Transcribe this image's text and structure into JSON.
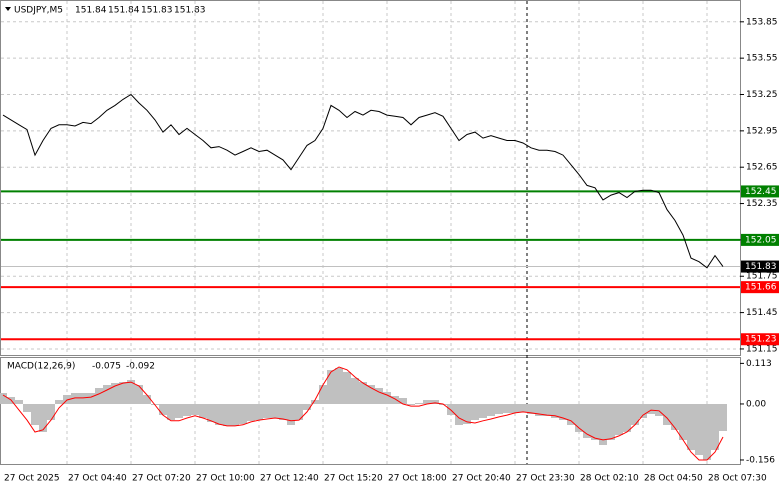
{
  "chart_data": [
    {
      "type": "line",
      "title": "USDJPY,M5",
      "ohlc": [
        151.84,
        151.84,
        151.83,
        151.83
      ],
      "color": "#000000",
      "categories": [
        "27 Oct 2025",
        null,
        null,
        null,
        null,
        null,
        null,
        null,
        "27 Oct 04:40",
        null,
        null,
        null,
        null,
        null,
        null,
        null,
        "27 Oct 07:20",
        null,
        null,
        null,
        null,
        null,
        null,
        null,
        "27 Oct 10:00",
        null,
        null,
        null,
        null,
        null,
        null,
        null,
        "27 Oct 12:40",
        null,
        null,
        null,
        null,
        null,
        null,
        null,
        "27 Oct 15:20",
        null,
        null,
        null,
        null,
        null,
        null,
        null,
        "27 Oct 18:00",
        null,
        null,
        null,
        null,
        null,
        null,
        null,
        "27 Oct 20:40",
        null,
        null,
        null,
        null,
        null,
        null,
        null,
        "27 Oct 23:30",
        null,
        null,
        null,
        null,
        null,
        null,
        null,
        "28 Oct 02:10",
        null,
        null,
        null,
        null,
        null,
        null,
        null,
        "28 Oct 04:50",
        null,
        null,
        null,
        null,
        null,
        null,
        null,
        "28 Oct 07:30",
        null,
        null
      ],
      "values": [
        153.08,
        153.04,
        153.0,
        152.96,
        152.75,
        152.87,
        152.97,
        153.0,
        153.0,
        152.99,
        153.02,
        153.01,
        153.06,
        153.12,
        153.16,
        153.21,
        153.25,
        153.18,
        153.12,
        153.04,
        152.94,
        153.0,
        152.92,
        152.97,
        152.92,
        152.87,
        152.81,
        152.82,
        152.79,
        152.75,
        152.78,
        152.81,
        152.78,
        152.79,
        152.75,
        152.71,
        152.63,
        152.73,
        152.83,
        152.87,
        152.97,
        153.16,
        153.12,
        153.06,
        153.11,
        153.08,
        153.12,
        153.11,
        153.08,
        153.07,
        153.06,
        153.0,
        153.06,
        153.08,
        153.1,
        153.07,
        152.97,
        152.87,
        152.92,
        152.94,
        152.89,
        152.91,
        152.89,
        152.87,
        152.87,
        152.85,
        152.81,
        152.79,
        152.79,
        152.78,
        152.75,
        152.67,
        152.59,
        152.5,
        152.48,
        152.38,
        152.42,
        152.44,
        152.4,
        152.45,
        152.46,
        152.46,
        152.44,
        152.3,
        152.21,
        152.09,
        151.9,
        151.87,
        151.82,
        151.92,
        151.83
      ],
      "ylim": [
        151.1,
        154.03
      ],
      "yticks": [
        153.85,
        153.55,
        153.25,
        152.95,
        152.65,
        152.35,
        152.05,
        151.75,
        151.45,
        151.15
      ],
      "grid": true,
      "hlines": [
        {
          "value": 152.45,
          "color": "#008000"
        },
        {
          "value": 152.05,
          "color": "#008000"
        },
        {
          "value": 151.66,
          "color": "#ff0000"
        },
        {
          "value": 151.23,
          "color": "#ff0000"
        }
      ]
    },
    {
      "type": "macd",
      "title": "MACD(12,26,9)",
      "series": [
        {
          "style": "histogram",
          "color": "#c0c0c0",
          "values": [
            0.031,
            0.02,
            0.011,
            -0.022,
            -0.058,
            -0.078,
            -0.045,
            0.011,
            0.025,
            0.031,
            0.031,
            0.031,
            0.045,
            0.053,
            0.058,
            0.061,
            0.067,
            0.053,
            0.025,
            -0.003,
            -0.031,
            -0.045,
            -0.039,
            -0.033,
            -0.031,
            -0.039,
            -0.05,
            -0.058,
            -0.061,
            -0.061,
            -0.056,
            -0.047,
            -0.045,
            -0.039,
            -0.039,
            -0.045,
            -0.058,
            -0.045,
            -0.017,
            0.011,
            0.053,
            0.095,
            0.1,
            0.089,
            0.072,
            0.061,
            0.053,
            0.045,
            0.033,
            0.022,
            0.017,
            -0.003,
            0.003,
            0.011,
            0.011,
            -0.003,
            -0.031,
            -0.058,
            -0.056,
            -0.045,
            -0.039,
            -0.033,
            -0.028,
            -0.025,
            -0.025,
            -0.022,
            -0.028,
            -0.033,
            -0.033,
            -0.039,
            -0.045,
            -0.058,
            -0.078,
            -0.095,
            -0.1,
            -0.114,
            -0.1,
            -0.086,
            -0.078,
            -0.058,
            -0.039,
            -0.028,
            -0.033,
            -0.058,
            -0.072,
            -0.1,
            -0.128,
            -0.142,
            -0.156,
            -0.128,
            -0.075
          ]
        },
        {
          "style": "line",
          "color": "#ff0000",
          "values": [
            0.025,
            0.011,
            -0.017,
            -0.045,
            -0.078,
            -0.072,
            -0.045,
            -0.011,
            0.011,
            0.017,
            0.017,
            0.019,
            0.028,
            0.039,
            0.05,
            0.058,
            0.061,
            0.05,
            0.025,
            -0.003,
            -0.031,
            -0.047,
            -0.047,
            -0.039,
            -0.033,
            -0.039,
            -0.047,
            -0.056,
            -0.061,
            -0.061,
            -0.058,
            -0.05,
            -0.045,
            -0.042,
            -0.039,
            -0.042,
            -0.047,
            -0.045,
            -0.022,
            0.011,
            0.053,
            0.089,
            0.103,
            0.095,
            0.075,
            0.058,
            0.045,
            0.033,
            0.025,
            0.014,
            0.0,
            -0.006,
            -0.006,
            0.0,
            0.003,
            0.0,
            -0.017,
            -0.039,
            -0.05,
            -0.053,
            -0.047,
            -0.042,
            -0.036,
            -0.031,
            -0.025,
            -0.022,
            -0.025,
            -0.028,
            -0.031,
            -0.033,
            -0.039,
            -0.047,
            -0.067,
            -0.084,
            -0.095,
            -0.1,
            -0.097,
            -0.089,
            -0.078,
            -0.058,
            -0.031,
            -0.017,
            -0.019,
            -0.039,
            -0.067,
            -0.1,
            -0.134,
            -0.156,
            -0.156,
            -0.134,
            -0.092
          ]
        }
      ],
      "ylim": [
        -0.17,
        0.128
      ],
      "yticks": [
        0.113,
        {
          "value": 0,
          "label": "0.00"
        },
        -0.156
      ],
      "grid": true
    }
  ]
}
